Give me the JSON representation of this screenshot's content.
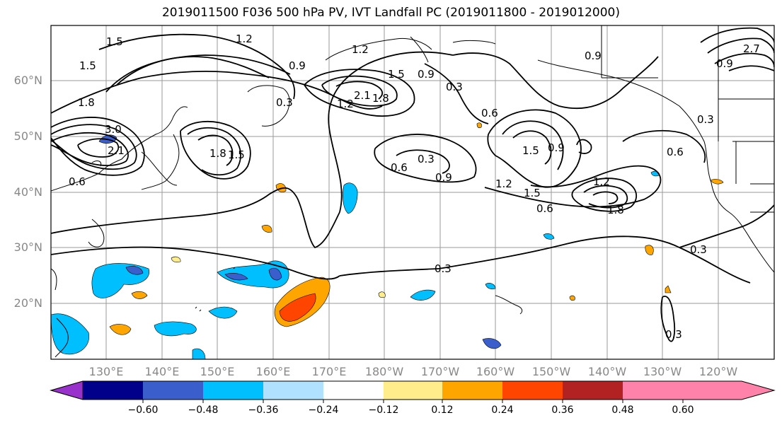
{
  "title": "2019011500 F036 500 hPa PV, IVT Landfall PC (2019011800 - 2019012000)",
  "lat_labels": [
    "60°N",
    "50°N",
    "40°N",
    "30°N",
    "20°N"
  ],
  "lon_labels": [
    "130°E",
    "140°E",
    "150°E",
    "160°E",
    "170°E",
    "180°W",
    "170°W",
    "160°W",
    "150°W",
    "140°W",
    "130°W",
    "120°W"
  ],
  "colorbar": {
    "ticks": [
      "−0.60",
      "−0.48",
      "−0.36",
      "−0.24",
      "−0.12",
      "0.12",
      "0.24",
      "0.36",
      "0.48",
      "0.60"
    ],
    "colors": [
      "#9932cc",
      "#00008b",
      "#3a5fcd",
      "#00bfff",
      "#b0e2ff",
      "#ffffff",
      "#ffec8b",
      "#ffa500",
      "#ff4500",
      "#b22222",
      "#ff82ab"
    ]
  },
  "contour_labels": [
    "1.5",
    "1.5",
    "1.2",
    "1.8",
    "3.0",
    "2.1",
    "1.8",
    "1.5",
    "1.2",
    "0.9",
    "0.3",
    "0.6",
    "0.9",
    "1.2",
    "2.1",
    "1.8",
    "1.5",
    "0.9",
    "0.3",
    "0.6",
    "0.3",
    "0.6",
    "0.9",
    "1.5",
    "0.9",
    "1.2",
    "1.5",
    "0.6",
    "1.2",
    "1.8",
    "0.9",
    "0.6",
    "0.3",
    "0.3",
    "0.3",
    "0.3",
    "2.7"
  ]
}
